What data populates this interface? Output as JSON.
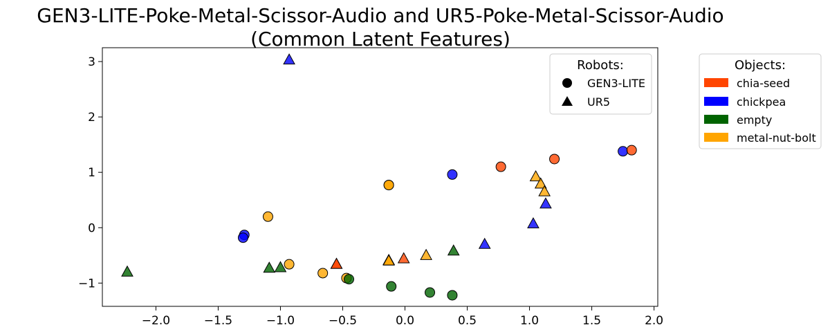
{
  "chart_data": {
    "type": "scatter",
    "title_line1": "GEN3-LITE-Poke-Metal-Scissor-Audio and UR5-Poke-Metal-Scissor-Audio",
    "title_line2": "(Common Latent Features)",
    "xlabel": "",
    "ylabel": "",
    "xlim": [
      -2.43,
      2.03
    ],
    "ylim": [
      -1.42,
      3.25
    ],
    "x_ticks": [
      -2.0,
      -1.5,
      -1.0,
      -0.5,
      0.0,
      0.5,
      1.0,
      1.5,
      2.0
    ],
    "x_tick_labels": [
      "−2.0",
      "−1.5",
      "−1.0",
      "−0.5",
      "0.0",
      "0.5",
      "1.0",
      "1.5",
      "2.0"
    ],
    "y_ticks": [
      -1,
      0,
      1,
      2,
      3
    ],
    "y_tick_labels": [
      "−1",
      "0",
      "1",
      "2",
      "3"
    ],
    "grid": false,
    "robots_legend": {
      "title": "Robots:",
      "placement": "top-right",
      "items": [
        {
          "label": "GEN3-LITE",
          "marker": "circle"
        },
        {
          "label": "UR5",
          "marker": "triangle"
        }
      ]
    },
    "objects_legend": {
      "title": "Objects:",
      "placement": "outside-right",
      "items": [
        {
          "label": "chia-seed",
          "color": "#ff4500"
        },
        {
          "label": "chickpea",
          "color": "#0000ff"
        },
        {
          "label": "empty",
          "color": "#006400"
        },
        {
          "label": "metal-nut-bolt",
          "color": "#ffa500"
        }
      ]
    },
    "points": [
      {
        "x": -0.13,
        "y": 0.77,
        "robot": "GEN3-LITE",
        "object": "metal-nut-bolt"
      },
      {
        "x": -0.13,
        "y": 0.77,
        "robot": "GEN3-LITE",
        "object": "metal-nut-bolt"
      },
      {
        "x": 0.38,
        "y": 0.96,
        "robot": "GEN3-LITE",
        "object": "chickpea"
      },
      {
        "x": 0.77,
        "y": 1.1,
        "robot": "GEN3-LITE",
        "object": "chia-seed"
      },
      {
        "x": 1.2,
        "y": 1.24,
        "robot": "GEN3-LITE",
        "object": "chia-seed"
      },
      {
        "x": 1.75,
        "y": 1.38,
        "robot": "GEN3-LITE",
        "object": "chickpea"
      },
      {
        "x": 1.82,
        "y": 1.4,
        "robot": "GEN3-LITE",
        "object": "chia-seed"
      },
      {
        "x": -1.29,
        "y": -0.13,
        "robot": "GEN3-LITE",
        "object": "chickpea"
      },
      {
        "x": -1.3,
        "y": -0.18,
        "robot": "GEN3-LITE",
        "object": "chickpea"
      },
      {
        "x": -1.1,
        "y": 0.2,
        "robot": "GEN3-LITE",
        "object": "metal-nut-bolt"
      },
      {
        "x": -0.93,
        "y": -0.66,
        "robot": "GEN3-LITE",
        "object": "metal-nut-bolt"
      },
      {
        "x": -0.66,
        "y": -0.82,
        "robot": "GEN3-LITE",
        "object": "metal-nut-bolt"
      },
      {
        "x": -0.47,
        "y": -0.91,
        "robot": "GEN3-LITE",
        "object": "metal-nut-bolt"
      },
      {
        "x": -0.45,
        "y": -0.93,
        "robot": "GEN3-LITE",
        "object": "empty"
      },
      {
        "x": -0.11,
        "y": -1.06,
        "robot": "GEN3-LITE",
        "object": "empty"
      },
      {
        "x": 0.2,
        "y": -1.17,
        "robot": "GEN3-LITE",
        "object": "empty"
      },
      {
        "x": 0.38,
        "y": -1.22,
        "robot": "GEN3-LITE",
        "object": "empty"
      },
      {
        "x": -0.93,
        "y": 3.03,
        "robot": "UR5",
        "object": "chickpea"
      },
      {
        "x": 1.05,
        "y": 0.92,
        "robot": "UR5",
        "object": "metal-nut-bolt"
      },
      {
        "x": 1.09,
        "y": 0.79,
        "robot": "UR5",
        "object": "metal-nut-bolt"
      },
      {
        "x": 1.12,
        "y": 0.65,
        "robot": "UR5",
        "object": "metal-nut-bolt"
      },
      {
        "x": 1.13,
        "y": 0.43,
        "robot": "UR5",
        "object": "chickpea"
      },
      {
        "x": 1.03,
        "y": 0.07,
        "robot": "UR5",
        "object": "chickpea"
      },
      {
        "x": 0.64,
        "y": -0.3,
        "robot": "UR5",
        "object": "chickpea"
      },
      {
        "x": 0.39,
        "y": -0.42,
        "robot": "UR5",
        "object": "empty"
      },
      {
        "x": 0.17,
        "y": -0.5,
        "robot": "UR5",
        "object": "metal-nut-bolt"
      },
      {
        "x": -0.01,
        "y": -0.56,
        "robot": "UR5",
        "object": "chia-seed"
      },
      {
        "x": -0.13,
        "y": -0.59,
        "robot": "UR5",
        "object": "metal-nut-bolt"
      },
      {
        "x": -0.13,
        "y": -0.6,
        "robot": "UR5",
        "object": "metal-nut-bolt"
      },
      {
        "x": -0.55,
        "y": -0.66,
        "robot": "UR5",
        "object": "chia-seed"
      },
      {
        "x": -0.55,
        "y": -0.66,
        "robot": "UR5",
        "object": "chia-seed"
      },
      {
        "x": -1.0,
        "y": -0.72,
        "robot": "UR5",
        "object": "empty"
      },
      {
        "x": -1.09,
        "y": -0.73,
        "robot": "UR5",
        "object": "empty"
      },
      {
        "x": -2.23,
        "y": -0.8,
        "robot": "UR5",
        "object": "empty"
      }
    ]
  }
}
